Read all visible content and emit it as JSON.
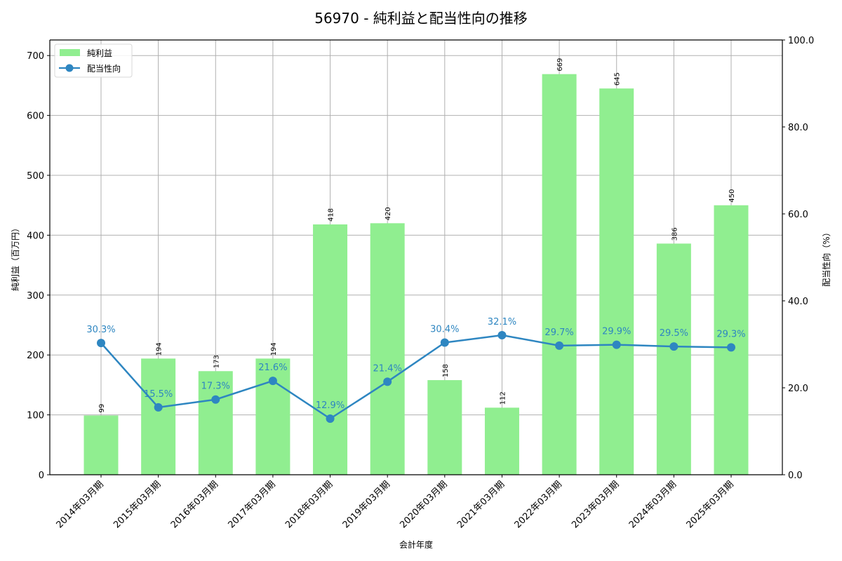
{
  "title": "56970 - 純利益と配当性向の推移",
  "colors": {
    "bar": "#90ee90",
    "line": "#2e86c1",
    "grid": "#b0b0b0",
    "axis": "#000000"
  },
  "legend": {
    "items": [
      {
        "label": "純利益",
        "type": "bar"
      },
      {
        "label": "配当性向",
        "type": "line"
      }
    ]
  },
  "chart_data": {
    "type": "bar",
    "title": "56970 - 純利益と配当性向の推移",
    "xlabel": "会計年度",
    "ylabel": "純利益（百万円）",
    "y2label": "配当性向（%）",
    "categories": [
      "2014年03月期",
      "2015年03月期",
      "2016年03月期",
      "2017年03月期",
      "2018年03月期",
      "2019年03月期",
      "2020年03月期",
      "2021年03月期",
      "2022年03月期",
      "2023年03月期",
      "2024年03月期",
      "2025年03月期"
    ],
    "series": [
      {
        "name": "純利益",
        "type": "bar",
        "axis": "left",
        "values": [
          99,
          194,
          173,
          194,
          418,
          420,
          158,
          112,
          669,
          645,
          386,
          450
        ],
        "labels": [
          "99",
          "194",
          "173",
          "194",
          "418",
          "420",
          "158",
          "112",
          "669",
          "645",
          "386",
          "450"
        ]
      },
      {
        "name": "配当性向",
        "type": "line",
        "axis": "right",
        "values": [
          30.3,
          15.5,
          17.3,
          21.6,
          12.9,
          21.4,
          30.4,
          32.1,
          29.7,
          29.9,
          29.5,
          29.3
        ],
        "labels": [
          "30.3%",
          "15.5%",
          "17.3%",
          "21.6%",
          "12.9%",
          "21.4%",
          "30.4%",
          "32.1%",
          "29.7%",
          "29.9%",
          "29.5%",
          "29.3%"
        ]
      }
    ],
    "ylim": [
      0,
      726
    ],
    "y2lim": [
      0,
      100
    ],
    "yticks": [
      "0",
      "100",
      "200",
      "300",
      "400",
      "500",
      "600",
      "700"
    ],
    "y2ticks": [
      "0.0",
      "20.0",
      "40.0",
      "60.0",
      "80.0",
      "100.0"
    ],
    "grid": true,
    "legend_position": "upper left"
  }
}
